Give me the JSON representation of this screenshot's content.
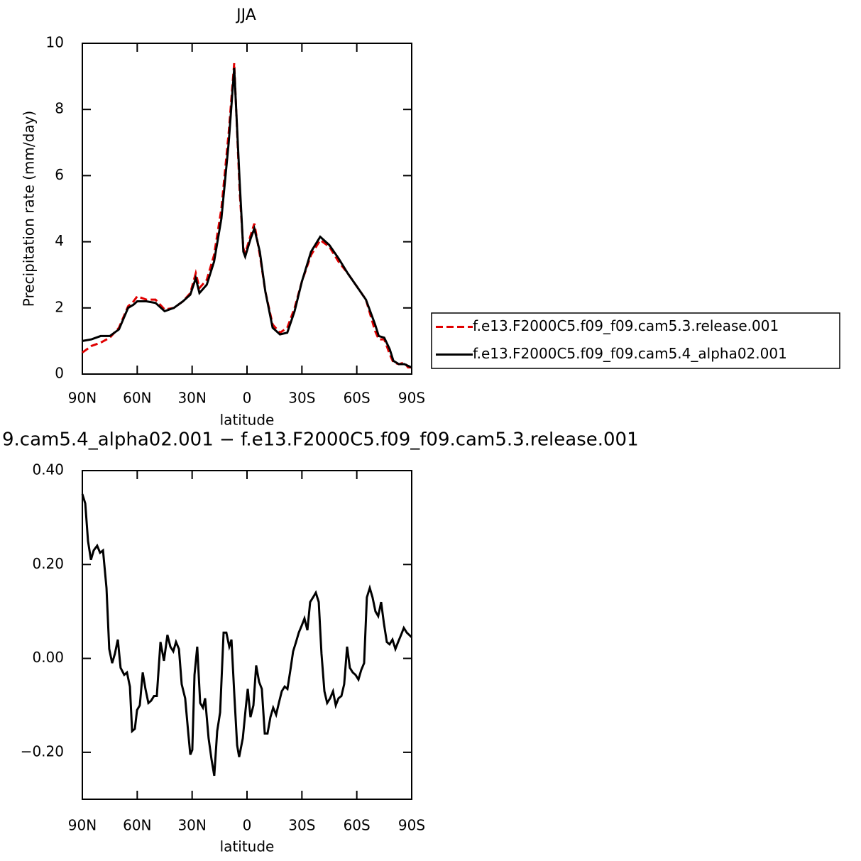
{
  "chart_data": [
    {
      "type": "line",
      "title": "JJA",
      "xlabel": "latitude",
      "ylabel": "Precipitation rate (mm/day)",
      "x": [
        90,
        85,
        80,
        75,
        70,
        65,
        62,
        60,
        55,
        50,
        45,
        40,
        35,
        31,
        28,
        26,
        22,
        18,
        14,
        10,
        7,
        4,
        2,
        1,
        -2,
        -4,
        -7,
        -10,
        -14,
        -18,
        -22,
        -26,
        -30,
        -35,
        -40,
        -45,
        -50,
        -55,
        -60,
        -65,
        -70,
        -72,
        -75,
        -78,
        -80,
        -83,
        -86,
        -88,
        -90
      ],
      "series": [
        {
          "name": "f.e13.F2000C5.f09_f09.cam5.3.release.001",
          "color": "#e00000",
          "dashed": true,
          "values": [
            0.65,
            0.85,
            0.95,
            1.1,
            1.4,
            2.05,
            2.2,
            2.35,
            2.25,
            2.25,
            1.95,
            2.0,
            2.2,
            2.45,
            3.05,
            2.6,
            2.85,
            3.6,
            5.0,
            7.3,
            9.4,
            5.5,
            3.8,
            3.65,
            4.2,
            4.55,
            3.6,
            2.5,
            1.5,
            1.25,
            1.4,
            2.0,
            2.8,
            3.6,
            4.05,
            3.85,
            3.4,
            3.05,
            2.65,
            2.25,
            1.3,
            1.05,
            1.05,
            0.6,
            0.35,
            0.3,
            0.35,
            0.2,
            0.2
          ]
        },
        {
          "name": "f.e13.F2000C5.f09_f09.cam5.4_alpha02.001",
          "color": "#000000",
          "dashed": false,
          "values": [
            1.0,
            1.05,
            1.15,
            1.15,
            1.35,
            2.0,
            2.1,
            2.2,
            2.2,
            2.15,
            1.9,
            2.0,
            2.2,
            2.4,
            2.9,
            2.45,
            2.7,
            3.4,
            4.7,
            7.0,
            9.25,
            5.8,
            3.7,
            3.55,
            4.1,
            4.4,
            3.7,
            2.5,
            1.4,
            1.2,
            1.25,
            1.9,
            2.8,
            3.7,
            4.15,
            3.9,
            3.5,
            3.05,
            2.65,
            2.25,
            1.5,
            1.15,
            1.1,
            0.75,
            0.4,
            0.3,
            0.3,
            0.25,
            0.2
          ]
        }
      ],
      "xlim": [
        90,
        -90
      ],
      "xticks": [
        {
          "value": 90,
          "label": "90N"
        },
        {
          "value": 60,
          "label": "60N"
        },
        {
          "value": 30,
          "label": "30N"
        },
        0,
        {
          "value": -30,
          "label": "30S"
        },
        {
          "value": -60,
          "label": "60S"
        },
        {
          "value": -90,
          "label": "90S"
        }
      ],
      "ylim": [
        0,
        10
      ],
      "yticks": [
        0,
        2,
        4,
        6,
        8,
        10
      ],
      "grid": false,
      "legend": "right"
    },
    {
      "type": "line",
      "title": "9.cam5.4_alpha02.001 − f.e13.F2000C5.f09_f09.cam5.3.release.001",
      "xlabel": "latitude",
      "x": [
        90,
        88.4,
        86.9,
        85.3,
        83.8,
        81.9,
        80.3,
        78.7,
        76.8,
        75.3,
        73.7,
        72.2,
        70.6,
        69.1,
        67.1,
        65.6,
        64.0,
        62.8,
        61.3,
        60.1,
        58.6,
        57.0,
        55.5,
        53.9,
        52.4,
        50.8,
        49.3,
        47.3,
        45.4,
        43.5,
        41.9,
        40.3,
        38.8,
        37.2,
        35.7,
        33.8,
        32.2,
        31.0,
        29.9,
        28.7,
        27.2,
        25.6,
        24.1,
        22.9,
        21.0,
        19.4,
        17.9,
        16.3,
        14.7,
        12.8,
        11.3,
        9.7,
        8.5,
        6.9,
        5.4,
        4.3,
        2.3,
        0.8,
        -0.4,
        -1.9,
        -3.5,
        -5.0,
        -6.6,
        -8.1,
        -9.7,
        -11.2,
        -12.8,
        -14.3,
        -15.9,
        -17.4,
        -19.0,
        -20.6,
        -22.1,
        -23.7,
        -25.2,
        -26.8,
        -28.3,
        -29.9,
        -31.4,
        -33.0,
        -34.5,
        -36.1,
        -37.6,
        -39.2,
        -40.7,
        -42.3,
        -43.8,
        -45.4,
        -47.0,
        -48.5,
        -50.0,
        -51.6,
        -53.1,
        -54.7,
        -56.2,
        -57.8,
        -59.3,
        -60.9,
        -62.4,
        -64.0,
        -65.5,
        -67.1,
        -68.6,
        -70.2,
        -71.7,
        -73.3,
        -74.8,
        -76.4,
        -77.9,
        -79.5,
        -81.1,
        -82.6,
        -84.2,
        -85.7,
        -87.3,
        -90
      ],
      "series": [
        {
          "color": "#000000",
          "dashed": false,
          "values": [
            0.35,
            0.33,
            0.25,
            0.21,
            0.23,
            0.24,
            0.225,
            0.23,
            0.15,
            0.02,
            -0.01,
            0.01,
            0.04,
            -0.02,
            -0.035,
            -0.03,
            -0.06,
            -0.155,
            -0.15,
            -0.11,
            -0.1,
            -0.03,
            -0.065,
            -0.095,
            -0.09,
            -0.08,
            -0.08,
            0.035,
            -0.005,
            0.05,
            0.025,
            0.015,
            0.035,
            0.02,
            -0.055,
            -0.085,
            -0.155,
            -0.205,
            -0.195,
            -0.035,
            0.025,
            -0.095,
            -0.105,
            -0.085,
            -0.17,
            -0.215,
            -0.25,
            -0.155,
            -0.115,
            0.055,
            0.055,
            0.025,
            0.04,
            -0.08,
            -0.185,
            -0.21,
            -0.17,
            -0.11,
            -0.065,
            -0.125,
            -0.1,
            -0.015,
            -0.05,
            -0.065,
            -0.16,
            -0.16,
            -0.125,
            -0.105,
            -0.12,
            -0.095,
            -0.07,
            -0.06,
            -0.065,
            -0.025,
            0.015,
            0.035,
            0.055,
            0.07,
            0.085,
            0.06,
            0.12,
            0.13,
            0.14,
            0.12,
            0.01,
            -0.07,
            -0.095,
            -0.085,
            -0.07,
            -0.1,
            -0.085,
            -0.08,
            -0.055,
            0.025,
            -0.02,
            -0.03,
            -0.035,
            -0.045,
            -0.025,
            -0.01,
            0.13,
            0.15,
            0.13,
            0.1,
            0.09,
            0.12,
            0.075,
            0.035,
            0.03,
            0.04,
            0.02,
            0.035,
            0.05,
            0.065,
            0.055,
            0.045
          ]
        }
      ],
      "xlim": [
        90,
        -90
      ],
      "xticks": [
        {
          "value": 90,
          "label": "90N"
        },
        {
          "value": 60,
          "label": "60N"
        },
        {
          "value": 30,
          "label": "30N"
        },
        0,
        {
          "value": -30,
          "label": "30S"
        },
        {
          "value": -60,
          "label": "60S"
        },
        {
          "value": -90,
          "label": "90S"
        }
      ],
      "ylim": [
        -0.3,
        0.4
      ],
      "yticks": [
        {
          "value": 0.4,
          "label": "0.40"
        },
        {
          "value": 0.2,
          "label": "0.20"
        },
        {
          "value": 0,
          "label": "0.00"
        },
        {
          "value": -0.2,
          "label": "−0.20"
        }
      ],
      "grid": false
    }
  ]
}
